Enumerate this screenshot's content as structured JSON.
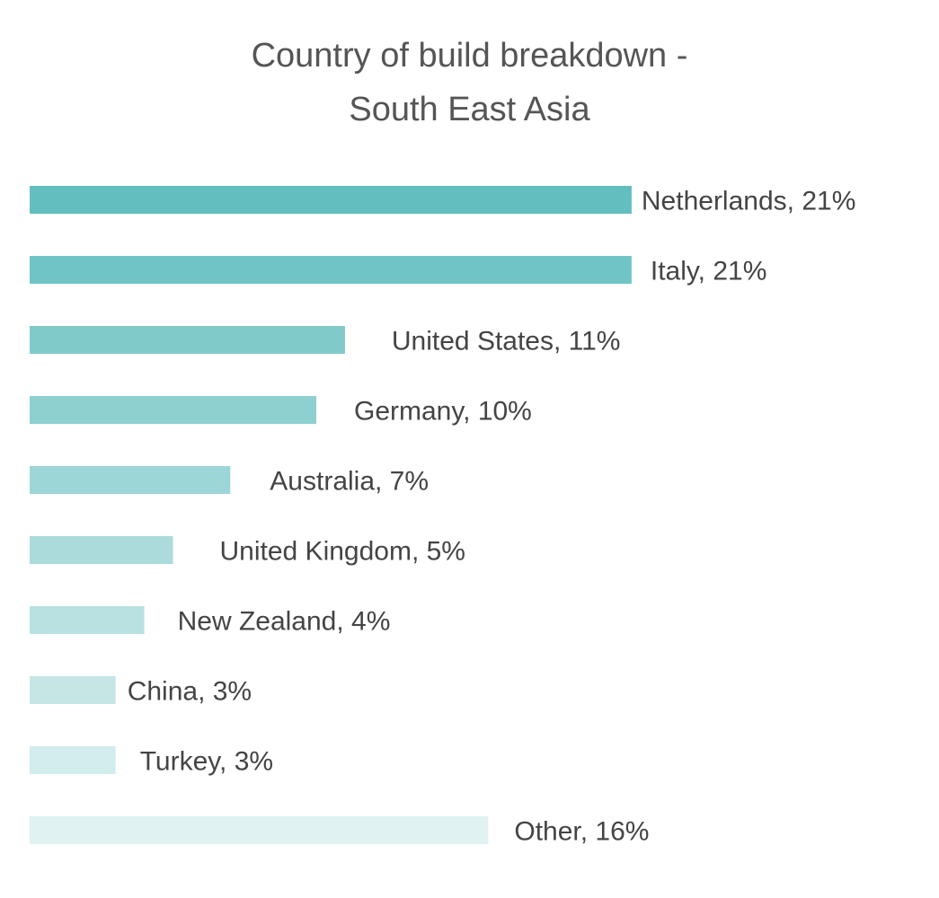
{
  "chart_data": {
    "type": "bar",
    "orientation": "horizontal",
    "title_line1": "Country of build breakdown -",
    "title_line2": "South East Asia",
    "categories": [
      "Netherlands",
      "Italy",
      "United States",
      "Germany",
      "Australia",
      "United Kingdom",
      "New Zealand",
      "China",
      "Turkey",
      "Other"
    ],
    "values": [
      21,
      21,
      11,
      10,
      7,
      5,
      4,
      3,
      3,
      16
    ],
    "labels": [
      "Netherlands, 21%",
      "Italy, 21%",
      "United States, 11%",
      "Germany, 10%",
      "Australia, 7%",
      "United Kingdom, 5%",
      "New Zealand, 4%",
      "China, 3%",
      "Turkey, 3%",
      "Other, 16%"
    ],
    "colors": [
      "#62bebf",
      "#71c4c5",
      "#80caca",
      "#8ed0d0",
      "#9dd6d6",
      "#abdbdb",
      "#b9e1e1",
      "#c6e6e6",
      "#d3eced",
      "#e0f2f2"
    ],
    "unit": "%",
    "grid": false,
    "legend": "none",
    "xlabel": "",
    "ylabel": ""
  }
}
